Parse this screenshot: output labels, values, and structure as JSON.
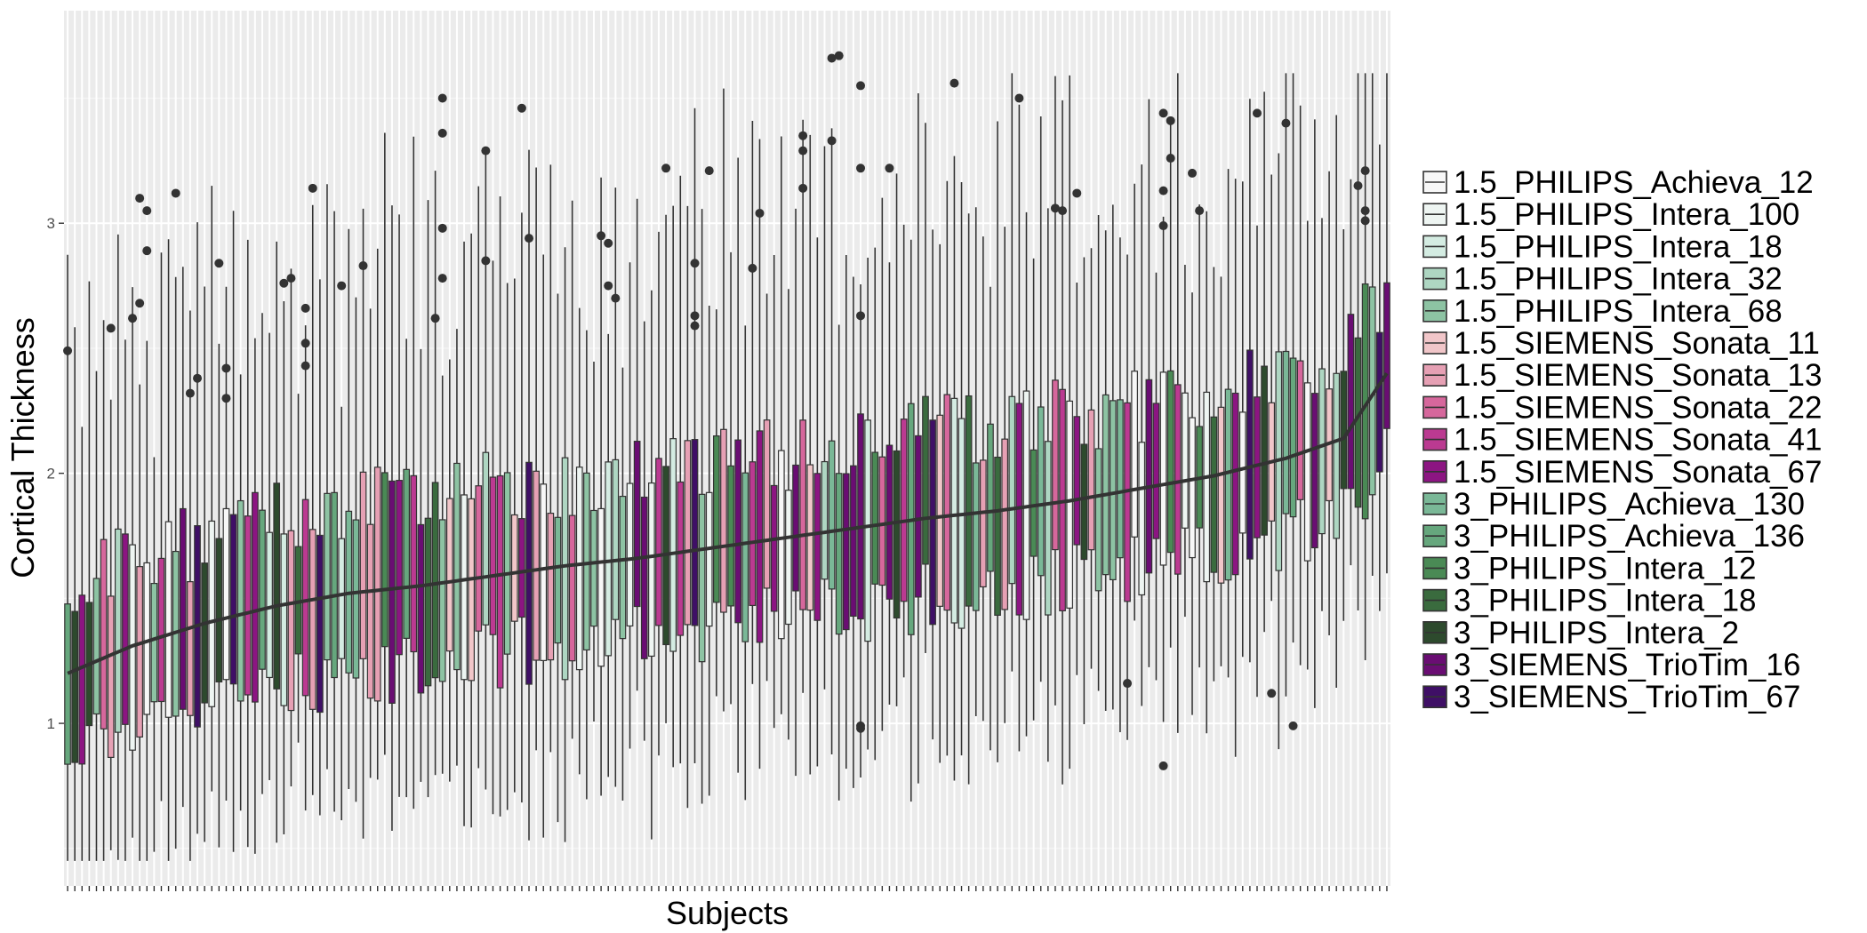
{
  "chart_data": {
    "type": "boxplot",
    "xlabel": "Subjects",
    "ylabel": "Cortical Thickness",
    "ylim": [
      0.35,
      3.85
    ],
    "yticks": [
      1,
      2,
      3
    ],
    "n_subjects": 184,
    "grid": "on",
    "legend_position": "right",
    "series": [
      {
        "name": "1.5_PHILIPS_Achieva_12",
        "color": "#f7f7f7"
      },
      {
        "name": "1.5_PHILIPS_Intera_100",
        "color": "#eef5f2"
      },
      {
        "name": "1.5_PHILIPS_Intera_18",
        "color": "#d4ece2"
      },
      {
        "name": "1.5_PHILIPS_Intera_32",
        "color": "#aed6c2"
      },
      {
        "name": "1.5_PHILIPS_Intera_68",
        "color": "#8dc3a3"
      },
      {
        "name": "1.5_SIEMENS_Sonata_11",
        "color": "#f1c6c9"
      },
      {
        "name": "1.5_SIEMENS_Sonata_13",
        "color": "#e6a0b4"
      },
      {
        "name": "1.5_SIEMENS_Sonata_22",
        "color": "#d6679c"
      },
      {
        "name": "1.5_SIEMENS_Sonata_41",
        "color": "#bb3a91"
      },
      {
        "name": "1.5_SIEMENS_Sonata_67",
        "color": "#8c1582"
      },
      {
        "name": "3_PHILIPS_Achieva_130",
        "color": "#7ab897"
      },
      {
        "name": "3_PHILIPS_Achieva_136",
        "color": "#66a77d"
      },
      {
        "name": "3_PHILIPS_Intera_12",
        "color": "#4a8a55"
      },
      {
        "name": "3_PHILIPS_Intera_18",
        "color": "#3a6b3e"
      },
      {
        "name": "3_PHILIPS_Intera_2",
        "color": "#2d4a2d"
      },
      {
        "name": "3_SIEMENS_TrioTim_16",
        "color": "#6a0d73"
      },
      {
        "name": "3_SIEMENS_TrioTim_67",
        "color": "#3f0f66"
      }
    ],
    "median_trend": [
      {
        "subject": 1,
        "median": 1.2
      },
      {
        "subject": 10,
        "median": 1.31
      },
      {
        "subject": 20,
        "median": 1.4
      },
      {
        "subject": 30,
        "median": 1.47
      },
      {
        "subject": 40,
        "median": 1.52
      },
      {
        "subject": 50,
        "median": 1.55
      },
      {
        "subject": 60,
        "median": 1.59
      },
      {
        "subject": 70,
        "median": 1.63
      },
      {
        "subject": 80,
        "median": 1.66
      },
      {
        "subject": 90,
        "median": 1.7
      },
      {
        "subject": 100,
        "median": 1.74
      },
      {
        "subject": 110,
        "median": 1.78
      },
      {
        "subject": 120,
        "median": 1.82
      },
      {
        "subject": 130,
        "median": 1.85
      },
      {
        "subject": 140,
        "median": 1.89
      },
      {
        "subject": 150,
        "median": 1.94
      },
      {
        "subject": 160,
        "median": 1.99
      },
      {
        "subject": 170,
        "median": 2.06
      },
      {
        "subject": 178,
        "median": 2.14
      },
      {
        "subject": 184,
        "median": 2.4
      }
    ],
    "outliers": [
      {
        "subject": 1,
        "value": 2.49
      },
      {
        "subject": 7,
        "value": 2.58
      },
      {
        "subject": 10,
        "value": 2.62
      },
      {
        "subject": 11,
        "value": 3.1
      },
      {
        "subject": 11,
        "value": 2.68
      },
      {
        "subject": 12,
        "value": 3.05
      },
      {
        "subject": 12,
        "value": 2.89
      },
      {
        "subject": 16,
        "value": 3.12
      },
      {
        "subject": 18,
        "value": 2.32
      },
      {
        "subject": 19,
        "value": 2.38
      },
      {
        "subject": 22,
        "value": 2.84
      },
      {
        "subject": 23,
        "value": 2.42
      },
      {
        "subject": 23,
        "value": 2.3
      },
      {
        "subject": 31,
        "value": 2.76
      },
      {
        "subject": 32,
        "value": 2.78
      },
      {
        "subject": 34,
        "value": 2.66
      },
      {
        "subject": 34,
        "value": 2.52
      },
      {
        "subject": 34,
        "value": 2.43
      },
      {
        "subject": 35,
        "value": 3.14
      },
      {
        "subject": 39,
        "value": 2.75
      },
      {
        "subject": 42,
        "value": 2.83
      },
      {
        "subject": 52,
        "value": 2.62
      },
      {
        "subject": 53,
        "value": 3.5
      },
      {
        "subject": 53,
        "value": 3.36
      },
      {
        "subject": 53,
        "value": 2.98
      },
      {
        "subject": 53,
        "value": 2.78
      },
      {
        "subject": 59,
        "value": 3.29
      },
      {
        "subject": 59,
        "value": 2.85
      },
      {
        "subject": 64,
        "value": 3.46
      },
      {
        "subject": 65,
        "value": 2.94
      },
      {
        "subject": 75,
        "value": 2.95
      },
      {
        "subject": 76,
        "value": 2.92
      },
      {
        "subject": 76,
        "value": 2.75
      },
      {
        "subject": 77,
        "value": 2.7
      },
      {
        "subject": 84,
        "value": 3.22
      },
      {
        "subject": 88,
        "value": 2.84
      },
      {
        "subject": 88,
        "value": 2.63
      },
      {
        "subject": 88,
        "value": 2.59
      },
      {
        "subject": 90,
        "value": 3.21
      },
      {
        "subject": 96,
        "value": 2.82
      },
      {
        "subject": 97,
        "value": 3.04
      },
      {
        "subject": 103,
        "value": 3.35
      },
      {
        "subject": 103,
        "value": 3.29
      },
      {
        "subject": 103,
        "value": 3.14
      },
      {
        "subject": 107,
        "value": 3.33
      },
      {
        "subject": 107,
        "value": 3.66
      },
      {
        "subject": 108,
        "value": 3.67
      },
      {
        "subject": 111,
        "value": 3.55
      },
      {
        "subject": 111,
        "value": 3.22
      },
      {
        "subject": 111,
        "value": 2.63
      },
      {
        "subject": 111,
        "value": 0.99
      },
      {
        "subject": 111,
        "value": 0.98
      },
      {
        "subject": 115,
        "value": 3.22
      },
      {
        "subject": 124,
        "value": 3.56
      },
      {
        "subject": 133,
        "value": 3.5
      },
      {
        "subject": 138,
        "value": 3.06
      },
      {
        "subject": 139,
        "value": 3.05
      },
      {
        "subject": 141,
        "value": 3.12
      },
      {
        "subject": 148,
        "value": 1.16
      },
      {
        "subject": 153,
        "value": 3.44
      },
      {
        "subject": 153,
        "value": 3.13
      },
      {
        "subject": 153,
        "value": 2.99
      },
      {
        "subject": 153,
        "value": 0.83
      },
      {
        "subject": 154,
        "value": 3.41
      },
      {
        "subject": 154,
        "value": 3.26
      },
      {
        "subject": 157,
        "value": 3.2
      },
      {
        "subject": 158,
        "value": 3.05
      },
      {
        "subject": 166,
        "value": 3.44
      },
      {
        "subject": 168,
        "value": 1.12
      },
      {
        "subject": 170,
        "value": 3.4
      },
      {
        "subject": 171,
        "value": 0.99
      },
      {
        "subject": 180,
        "value": 3.15
      },
      {
        "subject": 181,
        "value": 3.21
      },
      {
        "subject": 181,
        "value": 3.05
      },
      {
        "subject": 181,
        "value": 3.01
      }
    ]
  }
}
